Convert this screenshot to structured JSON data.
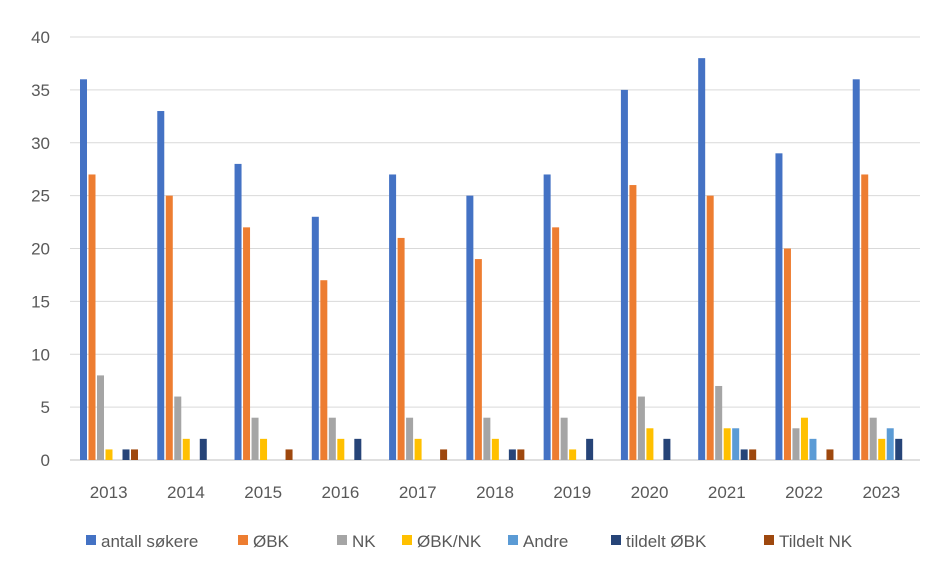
{
  "chart_data": {
    "type": "bar",
    "title": "",
    "xlabel": "",
    "ylabel": "",
    "ylim": [
      0,
      40
    ],
    "yticks": [
      0,
      5,
      10,
      15,
      20,
      25,
      30,
      35,
      40
    ],
    "grid": "horizontal",
    "legend_position": "bottom",
    "categories": [
      "2013",
      "2014",
      "2015",
      "2016",
      "2017",
      "2018",
      "2019",
      "2020",
      "2021",
      "2022",
      "2023"
    ],
    "series": [
      {
        "name": "antall søkere",
        "color": "#4472C4",
        "values": [
          36,
          33,
          28,
          23,
          27,
          25,
          27,
          35,
          38,
          29,
          36
        ]
      },
      {
        "name": "ØBK",
        "color": "#ED7D31",
        "values": [
          27,
          25,
          22,
          17,
          21,
          19,
          22,
          26,
          25,
          20,
          27
        ]
      },
      {
        "name": "NK",
        "color": "#A5A5A5",
        "values": [
          8,
          6,
          4,
          4,
          4,
          4,
          4,
          6,
          7,
          3,
          4
        ]
      },
      {
        "name": "ØBK/NK",
        "color": "#FFC000",
        "values": [
          1,
          2,
          2,
          2,
          2,
          2,
          1,
          3,
          3,
          4,
          2
        ]
      },
      {
        "name": "Andre",
        "color": "#5B9BD5",
        "values": [
          0,
          0,
          0,
          0,
          0,
          0,
          0,
          0,
          3,
          2,
          3
        ]
      },
      {
        "name": "tildelt ØBK",
        "color": "#264478",
        "values": [
          1,
          2,
          0,
          2,
          0,
          1,
          2,
          2,
          1,
          0,
          2
        ]
      },
      {
        "name": "Tildelt NK",
        "color": "#9E480E",
        "values": [
          1,
          0,
          1,
          0,
          1,
          1,
          0,
          0,
          1,
          1,
          0
        ]
      }
    ]
  }
}
